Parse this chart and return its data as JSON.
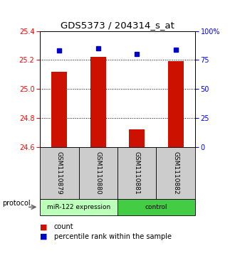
{
  "title": "GDS5373 / 204314_s_at",
  "samples": [
    "GSM1110879",
    "GSM1110880",
    "GSM1110881",
    "GSM1110882"
  ],
  "bar_values": [
    25.12,
    25.22,
    24.72,
    25.19
  ],
  "percentile_values": [
    83,
    85,
    80,
    84
  ],
  "bar_color": "#cc1100",
  "percentile_color": "#0000cc",
  "ylim_left": [
    24.6,
    25.4
  ],
  "ylim_right": [
    0,
    100
  ],
  "yticks_left": [
    24.6,
    24.8,
    25.0,
    25.2,
    25.4
  ],
  "yticks_right": [
    0,
    25,
    50,
    75,
    100
  ],
  "ytick_labels_right": [
    "0",
    "25",
    "50",
    "75",
    "100%"
  ],
  "groups": [
    {
      "label": "miR-122 expression",
      "indices": [
        0,
        1
      ],
      "color": "#bbffbb"
    },
    {
      "label": "control",
      "indices": [
        2,
        3
      ],
      "color": "#44cc44"
    }
  ],
  "protocol_label": "protocol",
  "legend_count_label": "count",
  "legend_percentile_label": "percentile rank within the sample",
  "bar_width": 0.4,
  "sample_box_color": "#cccccc",
  "title_fontsize": 9.5,
  "tick_fontsize": 7,
  "label_fontsize": 7,
  "sample_fontsize": 6.5
}
